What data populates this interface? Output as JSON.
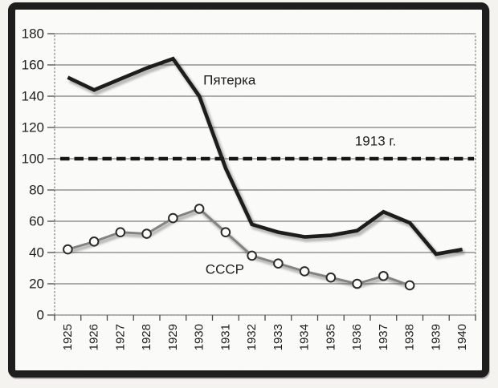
{
  "chart_data": {
    "type": "line",
    "title": "",
    "x_categories": [
      "1925",
      "1926",
      "1927",
      "1928",
      "1929",
      "1930",
      "1931",
      "1932",
      "1933",
      "1934",
      "1935",
      "1936",
      "1937",
      "1938",
      "1939",
      "1940"
    ],
    "ylim": [
      0,
      180
    ],
    "ytick_step": 20,
    "ytick_labels": [
      "0",
      "20",
      "40",
      "60",
      "80",
      "100",
      "120",
      "140",
      "160",
      "180"
    ],
    "grid": "horizontal",
    "legend_position": "none (inline labels on plot)",
    "series": [
      {
        "name": "Пятерка",
        "style": "thick-black-line",
        "values": [
          152,
          144,
          151,
          158,
          164,
          140,
          94,
          58,
          53,
          50,
          51,
          54,
          66,
          59,
          39,
          42
        ]
      },
      {
        "name": "СССР",
        "style": "gray-line-circle-markers",
        "values": [
          42,
          47,
          53,
          52,
          62,
          68,
          53,
          38,
          33,
          28,
          24,
          20,
          25,
          19,
          null,
          null
        ]
      }
    ],
    "reference_line": {
      "label": "1913 г.",
      "value": 100,
      "style": "bold-dashed-black"
    },
    "annotations": [
      {
        "text": "Пятерка",
        "x_index": 6.15,
        "value": 150,
        "target": "series-pyaterka"
      },
      {
        "text": "1913 г.",
        "x_index": 11.7,
        "value": 111,
        "target": "reference-line"
      },
      {
        "text": "СССР",
        "x_index": 5.97,
        "value": 29,
        "target": "series-sssr"
      }
    ]
  },
  "colors": {
    "frame": "#1c1c1c",
    "background": "#fcfcfa",
    "gridline": "#5f5f5f",
    "axis": "#4a4a4a",
    "text": "#1d1d1d",
    "series_pyaterka": "#1d1d1d",
    "series_sssr_line": "#828282",
    "marker_fill": "#ffffff",
    "marker_stroke": "#2b2b2b",
    "reference_line": "#161616",
    "shadow": "rgba(70,70,70,0.35)"
  }
}
